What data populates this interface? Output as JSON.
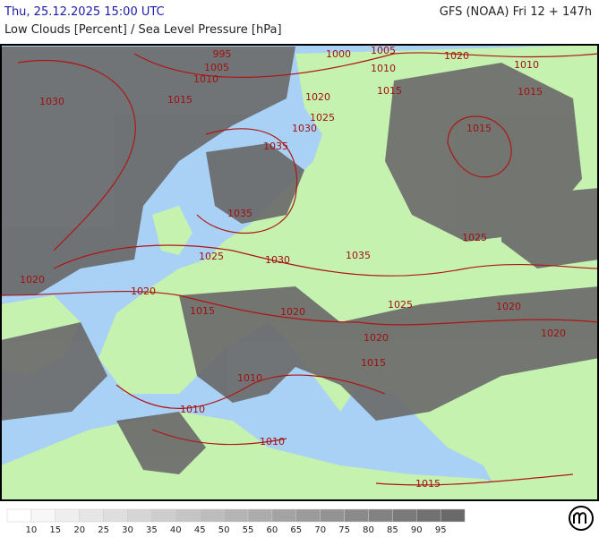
{
  "header": {
    "time": "Thu, 25.12.2025 15:00 UTC",
    "model": "GFS (NOAA) Fri 12 + 147h",
    "subtitle": "Low Clouds [Percent] / Sea Level Pressure [hPa]"
  },
  "isobar_labels": [
    995,
    1000,
    1005,
    1020,
    1010,
    1005,
    1010,
    1010,
    1015,
    1015,
    1030,
    1015,
    1020,
    1025,
    1030,
    1015,
    1035,
    1035,
    1025,
    1025,
    1030,
    1035,
    1020,
    1020,
    1025,
    1020,
    1015,
    1020,
    1020,
    1020,
    1015,
    1010,
    1010,
    1010,
    1015
  ],
  "legend": {
    "labels": [
      10,
      15,
      20,
      25,
      30,
      35,
      40,
      45,
      50,
      55,
      60,
      65,
      70,
      75,
      80,
      85,
      90,
      95
    ]
  }
}
